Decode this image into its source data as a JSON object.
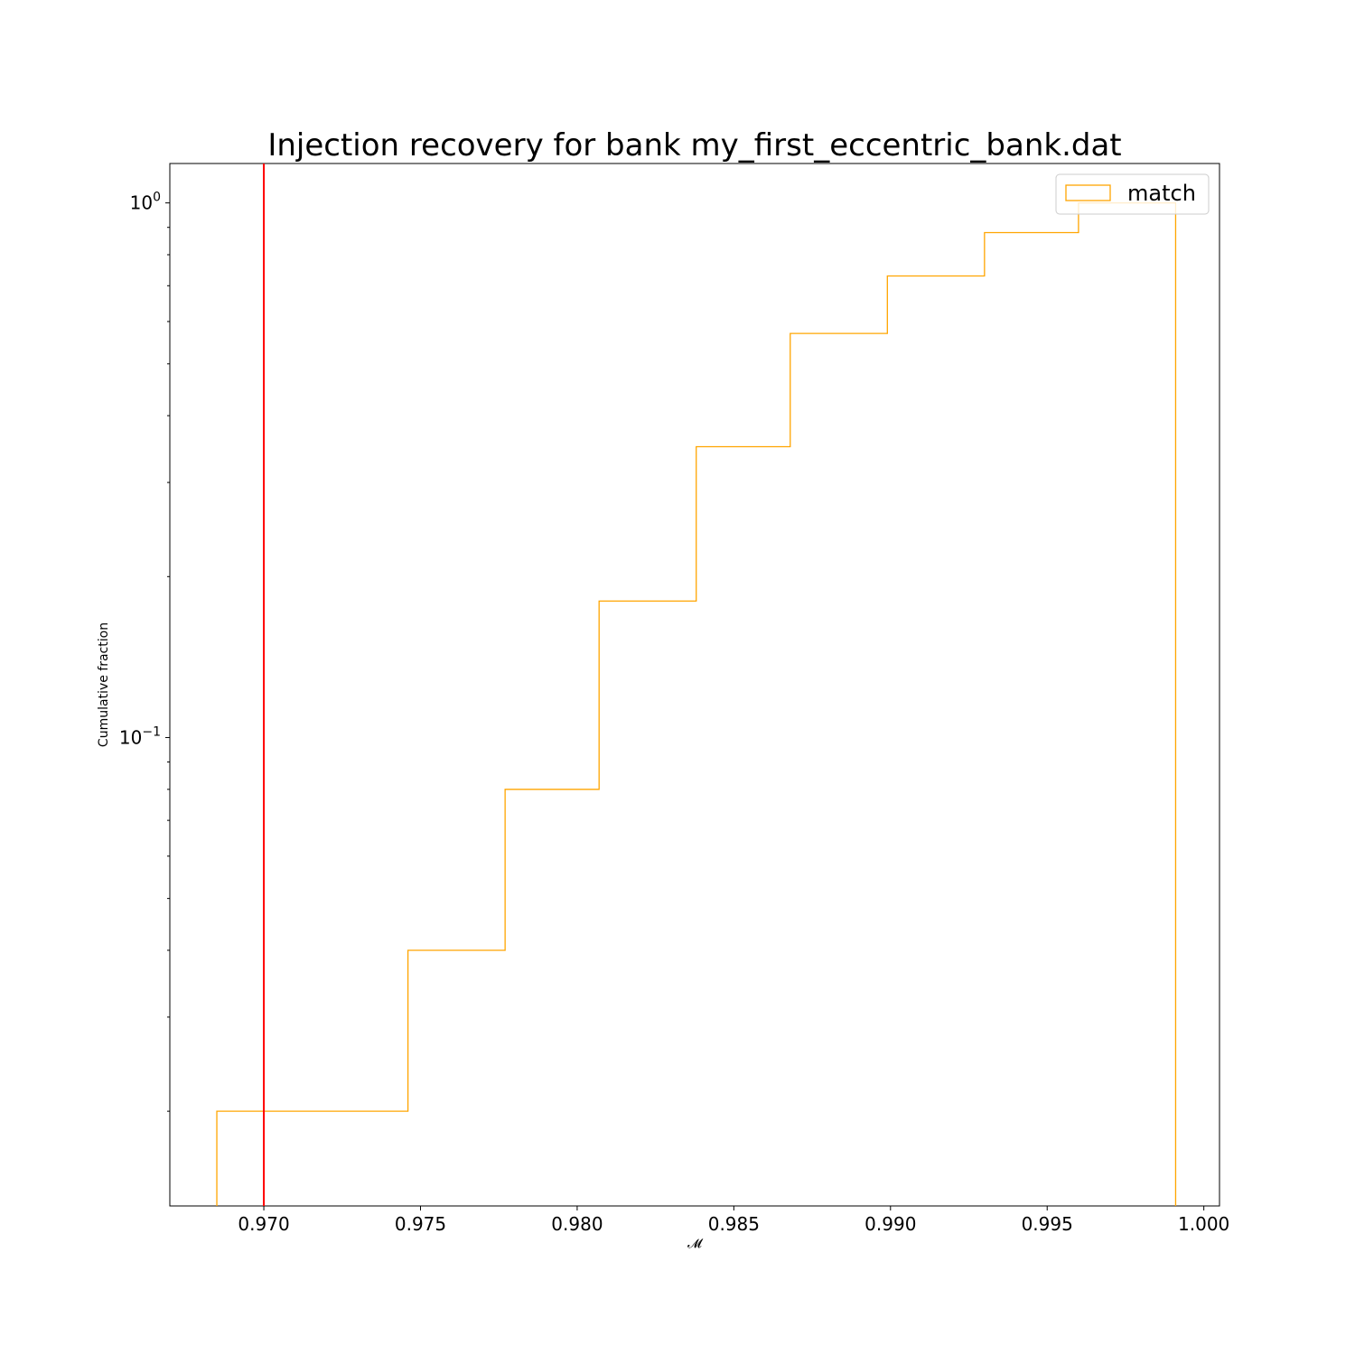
{
  "chart_data": {
    "type": "histogram-step",
    "title": "Injection recovery for bank my_first_eccentric_bank.dat",
    "xlabel": "𝓜",
    "ylabel": "Cumulative fraction",
    "yscale": "log",
    "xlim": [
      0.967,
      1.0005
    ],
    "ylim": [
      0.0133,
      1.185
    ],
    "xticks": [
      0.97,
      0.975,
      0.98,
      0.985,
      0.99,
      0.995,
      1.0
    ],
    "xtick_labels": [
      "0.970",
      "0.975",
      "0.980",
      "0.985",
      "0.990",
      "0.995",
      "1.000"
    ],
    "yticks": [
      {
        "value": 1.0,
        "base": "10",
        "exp": "0"
      },
      {
        "value": 0.1,
        "base": "10",
        "exp": "−1"
      }
    ],
    "bin_edges": [
      0.9685,
      0.9716,
      0.9746,
      0.9777,
      0.9807,
      0.9838,
      0.9868,
      0.9899,
      0.993,
      0.996,
      0.9991
    ],
    "values": [
      0.02,
      0.02,
      0.04,
      0.08,
      0.18,
      0.35,
      0.57,
      0.73,
      0.88,
      1.0
    ],
    "series_color": "#ffa500",
    "reference_line": {
      "x": 0.97,
      "color": "#ff0000"
    },
    "legend": {
      "position": "upper-right",
      "entries": [
        {
          "label": "match",
          "color": "#ffa500"
        }
      ]
    },
    "grid": false
  }
}
